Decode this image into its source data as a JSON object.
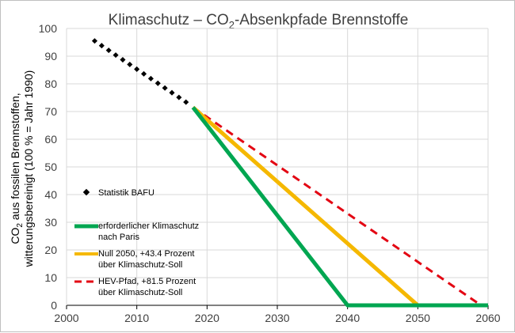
{
  "chart_data": {
    "type": "line",
    "title": "Klimaschutz – CO",
    "title_sub": "2",
    "title_suffix": "-Absenkpfade Brennstoffe",
    "ylabel_line1_pre": "CO",
    "ylabel_line1_sub": "2",
    "ylabel_line1_post": " aus fossilen Brennstoffen,",
    "ylabel_line2": "witterungsbereinigt (100 % = Jahr 1990)",
    "xlim": [
      2000,
      2060
    ],
    "ylim": [
      0,
      100
    ],
    "xticks": [
      "2000",
      "2010",
      "2020",
      "2030",
      "2040",
      "2050",
      "2060"
    ],
    "yticks": [
      "0",
      "10",
      "20",
      "30",
      "40",
      "50",
      "60",
      "70",
      "80",
      "90",
      "100"
    ],
    "grid": true,
    "legend_position": "left",
    "series": [
      {
        "name": "Statistik BAFU",
        "style": "dots",
        "color": "#000000",
        "x": [
          2004,
          2005,
          2006,
          2007,
          2008,
          2009,
          2010,
          2011,
          2012,
          2013,
          2014,
          2015,
          2016,
          2017
        ],
        "y": [
          95.5,
          93.8,
          92.1,
          90.4,
          88.7,
          87.0,
          85.3,
          83.6,
          81.9,
          80.2,
          78.5,
          76.8,
          75.1,
          73.4
        ]
      },
      {
        "name_line1": "erforderlicher Klimaschutz",
        "name_line2": "nach Paris",
        "style": "solid",
        "color": "#00a651",
        "x": [
          2018,
          2040,
          2060
        ],
        "y": [
          71.5,
          0,
          0
        ]
      },
      {
        "name_line1": "Null 2050, +43.4 Prozent",
        "name_line2": "über Klimaschutz-Soll",
        "style": "solid",
        "color": "#f5b800",
        "x": [
          2018,
          2050,
          2060
        ],
        "y": [
          71.5,
          0,
          0
        ]
      },
      {
        "name_line1": "HEV-Pfad, +81.5 Prozent",
        "name_line2": "über Klimaschutz-Soll",
        "style": "dashed",
        "color": "#e30613",
        "x": [
          2018,
          2059
        ],
        "y": [
          71.5,
          0
        ]
      }
    ]
  }
}
